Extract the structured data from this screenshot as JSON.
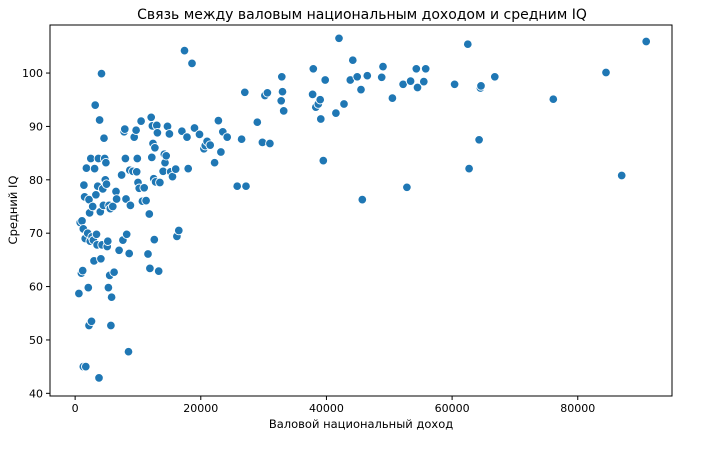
{
  "chart_data": {
    "type": "scatter",
    "title": "Связь между валовым национальным доходом и средним IQ",
    "xlabel": "Валовой национальный доход",
    "ylabel": "Средний IQ",
    "xlim": [
      -4000,
      95000
    ],
    "ylim": [
      39.5,
      109
    ],
    "xticks": [
      0,
      20000,
      40000,
      60000,
      80000
    ],
    "yticks": [
      40,
      50,
      60,
      70,
      80,
      90,
      100
    ],
    "grid": false,
    "point_color": "#1f77b4",
    "points": [
      {
        "x": 600,
        "y": 58.7
      },
      {
        "x": 800,
        "y": 72.0
      },
      {
        "x": 1000,
        "y": 62.5
      },
      {
        "x": 1100,
        "y": 72.3
      },
      {
        "x": 1200,
        "y": 63.0
      },
      {
        "x": 1300,
        "y": 45.0
      },
      {
        "x": 1300,
        "y": 70.8
      },
      {
        "x": 1400,
        "y": 79.0
      },
      {
        "x": 1500,
        "y": 76.8
      },
      {
        "x": 1600,
        "y": 69.0
      },
      {
        "x": 1700,
        "y": 45.0
      },
      {
        "x": 1800,
        "y": 82.2
      },
      {
        "x": 2000,
        "y": 70.0
      },
      {
        "x": 2100,
        "y": 59.8
      },
      {
        "x": 2200,
        "y": 76.3
      },
      {
        "x": 2200,
        "y": 52.7
      },
      {
        "x": 2300,
        "y": 73.8
      },
      {
        "x": 2400,
        "y": 68.5
      },
      {
        "x": 2500,
        "y": 84.0
      },
      {
        "x": 2600,
        "y": 53.5
      },
      {
        "x": 2700,
        "y": 69.3
      },
      {
        "x": 2800,
        "y": 75.0
      },
      {
        "x": 2900,
        "y": 68.7
      },
      {
        "x": 3000,
        "y": 64.8
      },
      {
        "x": 3100,
        "y": 82.1
      },
      {
        "x": 3200,
        "y": 94.0
      },
      {
        "x": 3300,
        "y": 77.2
      },
      {
        "x": 3400,
        "y": 69.8
      },
      {
        "x": 3500,
        "y": 67.8
      },
      {
        "x": 3600,
        "y": 78.8
      },
      {
        "x": 3700,
        "y": 84.0
      },
      {
        "x": 3800,
        "y": 42.9
      },
      {
        "x": 3900,
        "y": 91.2
      },
      {
        "x": 4000,
        "y": 74.0
      },
      {
        "x": 4100,
        "y": 65.2
      },
      {
        "x": 4200,
        "y": 99.9
      },
      {
        "x": 4300,
        "y": 67.8
      },
      {
        "x": 4400,
        "y": 78.3
      },
      {
        "x": 4500,
        "y": 75.2
      },
      {
        "x": 4600,
        "y": 87.8
      },
      {
        "x": 4700,
        "y": 84.0
      },
      {
        "x": 4800,
        "y": 80.0
      },
      {
        "x": 4900,
        "y": 83.2
      },
      {
        "x": 5000,
        "y": 79.2
      },
      {
        "x": 5100,
        "y": 67.5
      },
      {
        "x": 5200,
        "y": 68.5
      },
      {
        "x": 5300,
        "y": 59.8
      },
      {
        "x": 5400,
        "y": 75.2
      },
      {
        "x": 5500,
        "y": 62.1
      },
      {
        "x": 5600,
        "y": 74.6
      },
      {
        "x": 5700,
        "y": 52.7
      },
      {
        "x": 5800,
        "y": 58.0
      },
      {
        "x": 6000,
        "y": 75.0
      },
      {
        "x": 6200,
        "y": 62.7
      },
      {
        "x": 6500,
        "y": 77.8
      },
      {
        "x": 6600,
        "y": 76.4
      },
      {
        "x": 7000,
        "y": 66.8
      },
      {
        "x": 7400,
        "y": 80.9
      },
      {
        "x": 7600,
        "y": 68.7
      },
      {
        "x": 7800,
        "y": 89.0
      },
      {
        "x": 7900,
        "y": 89.5
      },
      {
        "x": 8000,
        "y": 84.0
      },
      {
        "x": 8100,
        "y": 76.4
      },
      {
        "x": 8200,
        "y": 69.8
      },
      {
        "x": 8500,
        "y": 47.8
      },
      {
        "x": 8600,
        "y": 66.2
      },
      {
        "x": 8700,
        "y": 81.8
      },
      {
        "x": 8800,
        "y": 75.2
      },
      {
        "x": 9200,
        "y": 81.6
      },
      {
        "x": 9400,
        "y": 88.0
      },
      {
        "x": 9700,
        "y": 89.3
      },
      {
        "x": 9800,
        "y": 81.5
      },
      {
        "x": 9900,
        "y": 84.0
      },
      {
        "x": 10000,
        "y": 79.5
      },
      {
        "x": 10200,
        "y": 78.4
      },
      {
        "x": 10500,
        "y": 91.0
      },
      {
        "x": 10700,
        "y": 76.0
      },
      {
        "x": 11000,
        "y": 78.5
      },
      {
        "x": 11300,
        "y": 76.1
      },
      {
        "x": 11600,
        "y": 66.1
      },
      {
        "x": 11800,
        "y": 73.6
      },
      {
        "x": 11900,
        "y": 63.4
      },
      {
        "x": 12100,
        "y": 91.7
      },
      {
        "x": 12200,
        "y": 84.2
      },
      {
        "x": 12300,
        "y": 90.1
      },
      {
        "x": 12400,
        "y": 86.8
      },
      {
        "x": 12500,
        "y": 80.2
      },
      {
        "x": 12600,
        "y": 68.8
      },
      {
        "x": 12700,
        "y": 86.0
      },
      {
        "x": 12800,
        "y": 79.6
      },
      {
        "x": 13000,
        "y": 90.2
      },
      {
        "x": 13100,
        "y": 88.8
      },
      {
        "x": 13300,
        "y": 62.9
      },
      {
        "x": 13500,
        "y": 79.5
      },
      {
        "x": 14000,
        "y": 81.6
      },
      {
        "x": 14200,
        "y": 84.8
      },
      {
        "x": 14300,
        "y": 83.2
      },
      {
        "x": 14500,
        "y": 84.5
      },
      {
        "x": 14700,
        "y": 90.0
      },
      {
        "x": 15000,
        "y": 88.6
      },
      {
        "x": 15200,
        "y": 81.5
      },
      {
        "x": 15500,
        "y": 80.6
      },
      {
        "x": 16000,
        "y": 82.0
      },
      {
        "x": 16200,
        "y": 69.4
      },
      {
        "x": 16500,
        "y": 70.5
      },
      {
        "x": 17000,
        "y": 89.1
      },
      {
        "x": 17400,
        "y": 104.2
      },
      {
        "x": 17800,
        "y": 88.0
      },
      {
        "x": 18000,
        "y": 82.1
      },
      {
        "x": 18600,
        "y": 101.8
      },
      {
        "x": 19000,
        "y": 89.7
      },
      {
        "x": 19800,
        "y": 88.5
      },
      {
        "x": 20500,
        "y": 85.8
      },
      {
        "x": 20700,
        "y": 86.4
      },
      {
        "x": 21000,
        "y": 87.2
      },
      {
        "x": 21500,
        "y": 86.5
      },
      {
        "x": 22200,
        "y": 83.2
      },
      {
        "x": 22800,
        "y": 91.1
      },
      {
        "x": 23200,
        "y": 85.2
      },
      {
        "x": 23500,
        "y": 89.0
      },
      {
        "x": 24200,
        "y": 88.0
      },
      {
        "x": 25800,
        "y": 78.8
      },
      {
        "x": 26500,
        "y": 87.6
      },
      {
        "x": 27000,
        "y": 96.4
      },
      {
        "x": 27200,
        "y": 78.8
      },
      {
        "x": 29000,
        "y": 90.8
      },
      {
        "x": 29800,
        "y": 87.0
      },
      {
        "x": 30200,
        "y": 95.8
      },
      {
        "x": 30600,
        "y": 96.3
      },
      {
        "x": 31000,
        "y": 86.8
      },
      {
        "x": 32800,
        "y": 94.8
      },
      {
        "x": 32900,
        "y": 99.3
      },
      {
        "x": 33000,
        "y": 96.5
      },
      {
        "x": 33200,
        "y": 92.9
      },
      {
        "x": 37800,
        "y": 96.0
      },
      {
        "x": 37900,
        "y": 100.8
      },
      {
        "x": 38300,
        "y": 93.6
      },
      {
        "x": 38700,
        "y": 94.2
      },
      {
        "x": 39000,
        "y": 95.0
      },
      {
        "x": 39100,
        "y": 91.4
      },
      {
        "x": 39500,
        "y": 83.6
      },
      {
        "x": 39800,
        "y": 98.7
      },
      {
        "x": 41500,
        "y": 92.5
      },
      {
        "x": 42000,
        "y": 106.5
      },
      {
        "x": 42800,
        "y": 94.2
      },
      {
        "x": 43800,
        "y": 98.7
      },
      {
        "x": 44200,
        "y": 102.4
      },
      {
        "x": 44900,
        "y": 99.3
      },
      {
        "x": 45500,
        "y": 96.9
      },
      {
        "x": 45700,
        "y": 76.3
      },
      {
        "x": 46500,
        "y": 99.5
      },
      {
        "x": 48800,
        "y": 99.2
      },
      {
        "x": 49000,
        "y": 101.2
      },
      {
        "x": 50500,
        "y": 95.3
      },
      {
        "x": 52200,
        "y": 97.9
      },
      {
        "x": 52800,
        "y": 78.6
      },
      {
        "x": 53400,
        "y": 98.5
      },
      {
        "x": 54300,
        "y": 100.8
      },
      {
        "x": 54500,
        "y": 97.3
      },
      {
        "x": 55500,
        "y": 98.4
      },
      {
        "x": 55800,
        "y": 100.8
      },
      {
        "x": 60400,
        "y": 97.9
      },
      {
        "x": 62500,
        "y": 105.4
      },
      {
        "x": 62700,
        "y": 82.1
      },
      {
        "x": 64300,
        "y": 87.5
      },
      {
        "x": 64500,
        "y": 97.2
      },
      {
        "x": 64600,
        "y": 97.6
      },
      {
        "x": 66800,
        "y": 99.3
      },
      {
        "x": 76100,
        "y": 95.1
      },
      {
        "x": 84500,
        "y": 100.1
      },
      {
        "x": 87000,
        "y": 80.8
      },
      {
        "x": 90900,
        "y": 105.9
      }
    ]
  }
}
